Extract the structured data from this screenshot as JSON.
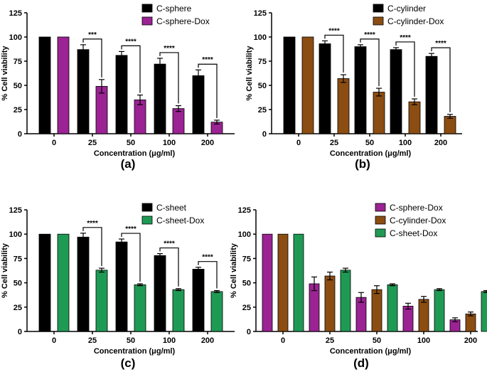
{
  "colors": {
    "C-sphere": "#000000",
    "C-sphere-Dox": "#9b2393",
    "C-cylinder": "#000000",
    "C-cylinder-Dox": "#8b4d12",
    "C-sheet": "#000000",
    "C-sheet-Dox": "#1f9a55"
  },
  "chart_data": [
    {
      "type": "bar",
      "panel_label": "(a)",
      "xlabel": "Concentration (μg/ml)",
      "ylabel": "% Cell viability",
      "ylim": [
        0,
        125
      ],
      "yticks": [
        0,
        25,
        50,
        75,
        100,
        125
      ],
      "categories": [
        "0",
        "25",
        "50",
        "100",
        "200"
      ],
      "legend_position": "top-right",
      "series": [
        {
          "name": "C-sphere",
          "values": [
            100,
            87,
            81,
            72,
            60
          ],
          "errors": [
            0,
            5,
            4,
            6,
            6
          ]
        },
        {
          "name": "C-sphere-Dox",
          "values": [
            100,
            49,
            35,
            26,
            12
          ],
          "errors": [
            0,
            7,
            5,
            3,
            2
          ]
        }
      ],
      "significance": [
        "",
        "***",
        "****",
        "****",
        "****"
      ]
    },
    {
      "type": "bar",
      "panel_label": "(b)",
      "xlabel": "Concentration (μg/ml)",
      "ylabel": "% Cell viability",
      "ylim": [
        0,
        125
      ],
      "yticks": [
        0,
        25,
        50,
        75,
        100,
        125
      ],
      "categories": [
        "0",
        "25",
        "50",
        "100",
        "200"
      ],
      "legend_position": "top-right",
      "series": [
        {
          "name": "C-cylinder",
          "values": [
            100,
            93,
            90,
            87,
            80
          ],
          "errors": [
            0,
            3,
            2,
            2,
            3
          ]
        },
        {
          "name": "C-cylinder-Dox",
          "values": [
            100,
            57,
            43,
            33,
            18
          ],
          "errors": [
            0,
            4,
            4,
            3,
            2
          ]
        }
      ],
      "significance": [
        "",
        "****",
        "****",
        "****",
        "****"
      ]
    },
    {
      "type": "bar",
      "panel_label": "(c)",
      "xlabel": "Concentration (μg/ml)",
      "ylabel": "% Cell viability",
      "ylim": [
        0,
        125
      ],
      "yticks": [
        0,
        25,
        50,
        75,
        100,
        125
      ],
      "categories": [
        "0",
        "25",
        "50",
        "100",
        "200"
      ],
      "legend_position": "top-right",
      "series": [
        {
          "name": "C-sheet",
          "values": [
            100,
            97,
            92,
            78,
            64
          ],
          "errors": [
            0,
            4,
            3,
            2,
            2
          ]
        },
        {
          "name": "C-sheet-Dox",
          "values": [
            100,
            63,
            48,
            43,
            41
          ],
          "errors": [
            0,
            2,
            1,
            1,
            1
          ]
        }
      ],
      "significance": [
        "",
        "****",
        "****",
        "****",
        "****"
      ]
    },
    {
      "type": "bar",
      "panel_label": "(d)",
      "xlabel": "Concentration (μg/ml)",
      "ylabel": "% Cell viability",
      "ylim": [
        0,
        125
      ],
      "yticks": [
        0,
        25,
        50,
        75,
        100,
        125
      ],
      "categories": [
        "0",
        "25",
        "50",
        "100",
        "200"
      ],
      "legend_position": "top-right",
      "series": [
        {
          "name": "C-sphere-Dox",
          "values": [
            100,
            49,
            35,
            26,
            12
          ],
          "errors": [
            0,
            7,
            5,
            3,
            2
          ]
        },
        {
          "name": "C-cylinder-Dox",
          "values": [
            100,
            57,
            43,
            33,
            18
          ],
          "errors": [
            0,
            4,
            4,
            3,
            2
          ]
        },
        {
          "name": "C-sheet-Dox",
          "values": [
            100,
            63,
            48,
            43,
            41
          ],
          "errors": [
            0,
            2,
            1,
            1,
            1
          ]
        }
      ],
      "significance": []
    }
  ]
}
